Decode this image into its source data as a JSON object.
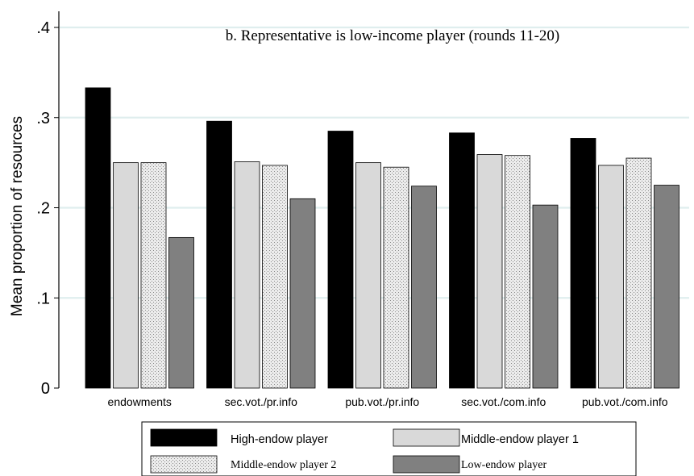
{
  "chart_data": {
    "type": "bar",
    "title": "b. Representative is low-income player (rounds 11-20)",
    "ylabel": "Mean proportion of resources",
    "xlabel": "",
    "ylim": [
      0,
      0.4
    ],
    "yticks": [
      {
        "value": 0,
        "label": "0"
      },
      {
        "value": 0.1,
        "label": ".1"
      },
      {
        "value": 0.2,
        "label": ".2"
      },
      {
        "value": 0.3,
        "label": ".3"
      },
      {
        "value": 0.4,
        "label": ".4"
      }
    ],
    "grid": true,
    "legend_position": "bottom",
    "categories": [
      "endowments",
      "sec.vot./pr.info",
      "pub.vot./pr.info",
      "sec.vot./com.info",
      "pub.vot./com.info"
    ],
    "series": [
      {
        "name": "High-endow player",
        "color": "#000000",
        "pattern": "solid",
        "values": [
          0.333,
          0.296,
          0.285,
          0.283,
          0.277
        ]
      },
      {
        "name": "Middle-endow player 1",
        "color": "#d9d9d9",
        "pattern": "solid",
        "values": [
          0.25,
          0.251,
          0.25,
          0.259,
          0.247
        ]
      },
      {
        "name": "Middle-endow player 2",
        "color": "#e6e6e6",
        "pattern": "dots",
        "values": [
          0.25,
          0.247,
          0.245,
          0.258,
          0.255
        ]
      },
      {
        "name": "Low-endow player",
        "color": "#808080",
        "pattern": "solid",
        "values": [
          0.167,
          0.21,
          0.224,
          0.203,
          0.225
        ]
      }
    ]
  }
}
